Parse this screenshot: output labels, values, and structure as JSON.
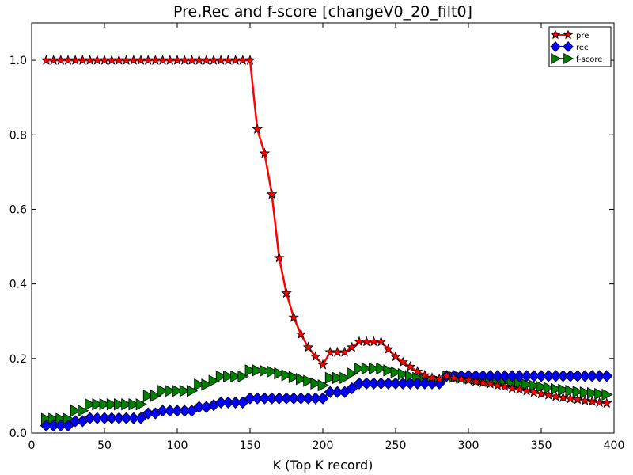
{
  "chart_data": {
    "type": "line",
    "title": "Pre,Rec and f-score [changeV0_20_filt0]",
    "xlabel": "K (Top K record)",
    "ylabel": "",
    "xlim": [
      0,
      400
    ],
    "ylim": [
      0.0,
      1.1
    ],
    "x_ticks": [
      "0",
      "50",
      "100",
      "150",
      "200",
      "250",
      "300",
      "350",
      "400"
    ],
    "y_ticks": [
      "0.0",
      "0.2",
      "0.4",
      "0.6",
      "0.8",
      "1.0"
    ],
    "grid": false,
    "legend_position": "top-right",
    "x": [
      10,
      15,
      20,
      25,
      30,
      35,
      40,
      45,
      50,
      55,
      60,
      65,
      70,
      75,
      80,
      85,
      90,
      95,
      100,
      105,
      110,
      115,
      120,
      125,
      130,
      135,
      140,
      145,
      150,
      155,
      160,
      165,
      170,
      175,
      180,
      185,
      190,
      195,
      200,
      205,
      210,
      215,
      220,
      225,
      230,
      235,
      240,
      245,
      250,
      255,
      260,
      265,
      270,
      275,
      280,
      285,
      290,
      295,
      300,
      305,
      310,
      315,
      320,
      325,
      330,
      335,
      340,
      345,
      350,
      355,
      360,
      365,
      370,
      375,
      380,
      385,
      390,
      395
    ],
    "series": [
      {
        "name": "pre",
        "color": "#ff0000",
        "marker": "star",
        "values": [
          1,
          1,
          1,
          1,
          1,
          1,
          1,
          1,
          1,
          1,
          1,
          1,
          1,
          1,
          1,
          1,
          1,
          1,
          1,
          1,
          1,
          1,
          1,
          1,
          1,
          1,
          1,
          1,
          1,
          0.815,
          0.75,
          0.64,
          0.47,
          0.375,
          0.31,
          0.265,
          0.23,
          0.205,
          0.183,
          0.217,
          0.217,
          0.217,
          0.23,
          0.245,
          0.245,
          0.245,
          0.245,
          0.225,
          0.205,
          0.19,
          0.178,
          0.165,
          0.155,
          0.148,
          0.145,
          0.153,
          0.148,
          0.145,
          0.142,
          0.138,
          0.135,
          0.132,
          0.128,
          0.125,
          0.12,
          0.117,
          0.113,
          0.109,
          0.105,
          0.102,
          0.098,
          0.095,
          0.092,
          0.09,
          0.087,
          0.085,
          0.082,
          0.08
        ]
      },
      {
        "name": "rec",
        "color": "#0000ff",
        "marker": "diamond",
        "values": [
          0.02,
          0.02,
          0.02,
          0.02,
          0.032,
          0.032,
          0.04,
          0.04,
          0.04,
          0.04,
          0.04,
          0.04,
          0.04,
          0.04,
          0.053,
          0.053,
          0.06,
          0.06,
          0.06,
          0.06,
          0.06,
          0.07,
          0.07,
          0.075,
          0.082,
          0.082,
          0.082,
          0.082,
          0.093,
          0.093,
          0.093,
          0.093,
          0.093,
          0.093,
          0.093,
          0.093,
          0.093,
          0.093,
          0.093,
          0.11,
          0.11,
          0.11,
          0.12,
          0.133,
          0.133,
          0.133,
          0.133,
          0.133,
          0.133,
          0.133,
          0.133,
          0.133,
          0.133,
          0.133,
          0.133,
          0.153,
          0.153,
          0.153,
          0.153,
          0.153,
          0.153,
          0.153,
          0.153,
          0.153,
          0.153,
          0.153,
          0.153,
          0.153,
          0.153,
          0.153,
          0.153,
          0.153,
          0.153,
          0.153,
          0.153,
          0.153,
          0.153,
          0.153
        ]
      },
      {
        "name": "f-score",
        "color": "#008000",
        "marker": "triangle-right",
        "values": [
          0.038,
          0.038,
          0.038,
          0.038,
          0.06,
          0.06,
          0.077,
          0.077,
          0.077,
          0.077,
          0.077,
          0.077,
          0.077,
          0.077,
          0.1,
          0.1,
          0.113,
          0.113,
          0.113,
          0.113,
          0.113,
          0.13,
          0.13,
          0.14,
          0.152,
          0.152,
          0.152,
          0.152,
          0.168,
          0.168,
          0.167,
          0.165,
          0.16,
          0.155,
          0.15,
          0.145,
          0.14,
          0.133,
          0.128,
          0.148,
          0.148,
          0.148,
          0.16,
          0.173,
          0.173,
          0.173,
          0.173,
          0.168,
          0.163,
          0.158,
          0.153,
          0.148,
          0.144,
          0.14,
          0.139,
          0.153,
          0.15,
          0.149,
          0.147,
          0.145,
          0.143,
          0.142,
          0.14,
          0.138,
          0.135,
          0.133,
          0.13,
          0.127,
          0.124,
          0.121,
          0.118,
          0.116,
          0.113,
          0.111,
          0.109,
          0.107,
          0.105,
          0.103
        ]
      }
    ]
  }
}
